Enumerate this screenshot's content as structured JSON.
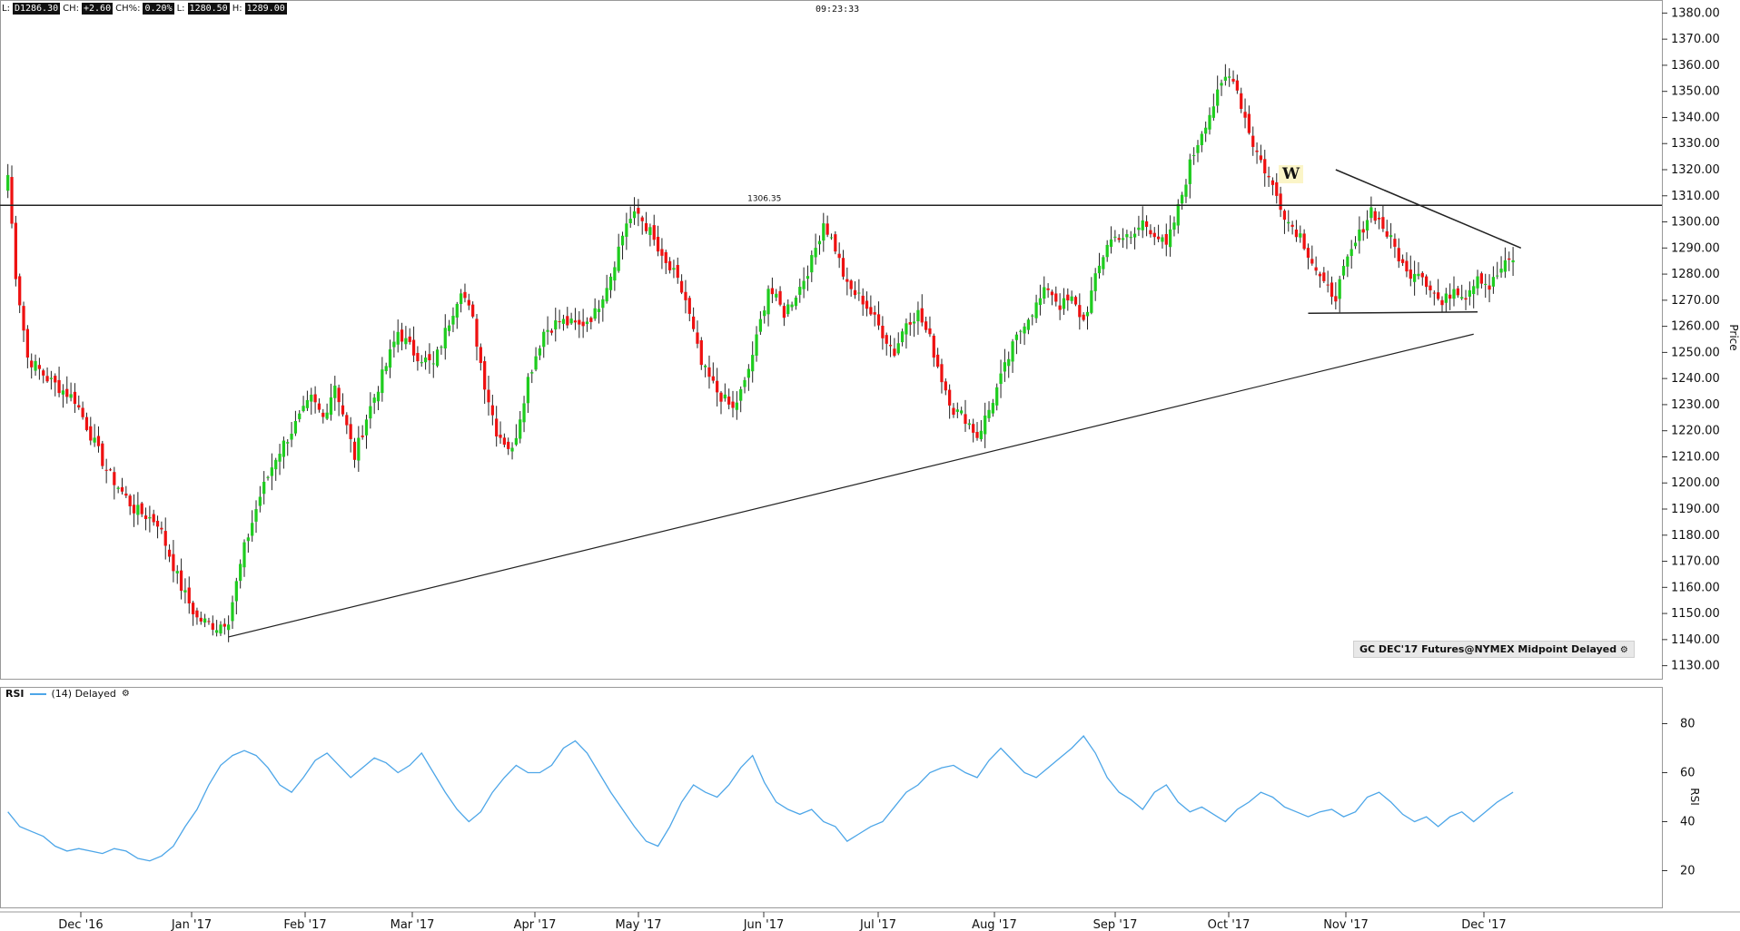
{
  "header": {
    "fields": [
      {
        "label": "L:",
        "value": "D1286.30"
      },
      {
        "label": "CH:",
        "value": "+2.60"
      },
      {
        "label": "CH%:",
        "value": "0.20%"
      },
      {
        "label": "L:",
        "value": "1280.50"
      },
      {
        "label": "H:",
        "value": "1289.00"
      }
    ],
    "clock": "09:23:33"
  },
  "symbol_label": "GC DEC'17 Futures@NYMEX Midpoint Delayed",
  "rsi_legend": {
    "name": "RSI",
    "params": "(14) Delayed"
  },
  "pattern_label": "W",
  "level_label": "1306.35",
  "chart_data": [
    {
      "type": "candlestick",
      "ylabel": "Price",
      "ylim": [
        1125,
        1385
      ],
      "y_ticks": [
        1130,
        1140,
        1150,
        1160,
        1170,
        1180,
        1190,
        1200,
        1210,
        1220,
        1230,
        1240,
        1250,
        1260,
        1270,
        1280,
        1290,
        1300,
        1310,
        1320,
        1330,
        1340,
        1350,
        1360,
        1370,
        1380
      ],
      "y_tick_labels": [
        "1130.00",
        "1140.00",
        "1150.00",
        "1160.00",
        "1170.00",
        "1180.00",
        "1190.00",
        "1200.00",
        "1210.00",
        "1220.00",
        "1230.00",
        "1240.00",
        "1250.00",
        "1260.00",
        "1270.00",
        "1280.00",
        "1290.00",
        "1300.00",
        "1310.00",
        "1320.00",
        "1330.00",
        "1340.00",
        "1350.00",
        "1360.00",
        "1370.00",
        "1380.00"
      ],
      "x_ticks": [
        "Dec '16",
        "Jan '17",
        "Feb '17",
        "Mar '17",
        "Apr '17",
        "May '17",
        "Jun '17",
        "Jul '17",
        "Aug '17",
        "Sep '17",
        "Oct '17",
        "Nov '17",
        "Dec '17"
      ],
      "colors": {
        "up": "#1fcc1f",
        "down": "#ee1111"
      },
      "close_path": [
        [
          0,
          1318
        ],
        [
          2,
          1280
        ],
        [
          5,
          1248
        ],
        [
          10,
          1240
        ],
        [
          17,
          1232
        ],
        [
          25,
          1205
        ],
        [
          32,
          1190
        ],
        [
          38,
          1185
        ],
        [
          44,
          1160
        ],
        [
          48,
          1148
        ],
        [
          53,
          1145
        ],
        [
          56,
          1148
        ],
        [
          60,
          1175
        ],
        [
          64,
          1195
        ],
        [
          68,
          1210
        ],
        [
          72,
          1220
        ],
        [
          77,
          1232
        ],
        [
          80,
          1225
        ],
        [
          83,
          1238
        ],
        [
          88,
          1210
        ],
        [
          91,
          1225
        ],
        [
          96,
          1245
        ],
        [
          99,
          1258
        ],
        [
          103,
          1250
        ],
        [
          108,
          1245
        ],
        [
          112,
          1262
        ],
        [
          115,
          1275
        ],
        [
          118,
          1262
        ],
        [
          121,
          1238
        ],
        [
          124,
          1220
        ],
        [
          128,
          1212
        ],
        [
          132,
          1240
        ],
        [
          136,
          1258
        ],
        [
          140,
          1262
        ],
        [
          145,
          1260
        ],
        [
          149,
          1265
        ],
        [
          153,
          1280
        ],
        [
          157,
          1300
        ],
        [
          160,
          1303
        ],
        [
          163,
          1296
        ],
        [
          166,
          1285
        ],
        [
          169,
          1280
        ],
        [
          172,
          1270
        ],
        [
          176,
          1245
        ],
        [
          180,
          1235
        ],
        [
          184,
          1228
        ],
        [
          187,
          1238
        ],
        [
          190,
          1255
        ],
        [
          193,
          1275
        ],
        [
          197,
          1265
        ],
        [
          201,
          1275
        ],
        [
          204,
          1285
        ],
        [
          207,
          1300
        ],
        [
          210,
          1290
        ],
        [
          213,
          1275
        ],
        [
          217,
          1270
        ],
        [
          221,
          1260
        ],
        [
          225,
          1250
        ],
        [
          228,
          1262
        ],
        [
          231,
          1265
        ],
        [
          234,
          1255
        ],
        [
          237,
          1240
        ],
        [
          240,
          1228
        ],
        [
          243,
          1225
        ],
        [
          246,
          1218
        ],
        [
          249,
          1228
        ],
        [
          252,
          1240
        ],
        [
          255,
          1252
        ],
        [
          258,
          1262
        ],
        [
          261,
          1268
        ],
        [
          264,
          1275
        ],
        [
          267,
          1268
        ],
        [
          270,
          1270
        ],
        [
          273,
          1262
        ],
        [
          276,
          1278
        ],
        [
          279,
          1292
        ],
        [
          282,
          1295
        ],
        [
          285,
          1293
        ],
        [
          288,
          1300
        ],
        [
          291,
          1296
        ],
        [
          294,
          1290
        ],
        [
          297,
          1305
        ],
        [
          300,
          1322
        ],
        [
          303,
          1335
        ],
        [
          306,
          1345
        ],
        [
          309,
          1355
        ],
        [
          311,
          1356
        ],
        [
          313,
          1345
        ],
        [
          316,
          1330
        ],
        [
          319,
          1320
        ],
        [
          322,
          1310
        ],
        [
          325,
          1300
        ],
        [
          328,
          1295
        ],
        [
          331,
          1285
        ],
        [
          334,
          1275
        ],
        [
          337,
          1272
        ],
        [
          340,
          1285
        ],
        [
          343,
          1295
        ],
        [
          346,
          1305
        ],
        [
          349,
          1298
        ],
        [
          352,
          1290
        ],
        [
          355,
          1280
        ],
        [
          358,
          1282
        ],
        [
          361,
          1275
        ],
        [
          364,
          1268
        ],
        [
          367,
          1275
        ],
        [
          370,
          1272
        ],
        [
          373,
          1280
        ],
        [
          376,
          1275
        ],
        [
          379,
          1282
        ],
        [
          382,
          1286
        ]
      ]
    },
    {
      "type": "line",
      "ylabel": "RSI",
      "ylim": [
        5,
        95
      ],
      "y_ticks": [
        20,
        40,
        60,
        80
      ],
      "color": "#4da6e8",
      "x": [
        0,
        3,
        6,
        9,
        12,
        15,
        18,
        21,
        24,
        27,
        30,
        33,
        36,
        39,
        42,
        45,
        48,
        51,
        54,
        57,
        60,
        63,
        66,
        69,
        72,
        75,
        78,
        81,
        84,
        87,
        90,
        93,
        96,
        99,
        102,
        105,
        108,
        111,
        114,
        117,
        120,
        123,
        126,
        129,
        132,
        135,
        138,
        141,
        144,
        147,
        150,
        153,
        156,
        159,
        162,
        165,
        168,
        171,
        174,
        177,
        180,
        183,
        186,
        189,
        192,
        195,
        198,
        201,
        204,
        207,
        210,
        213,
        216,
        219,
        222,
        225,
        228,
        231,
        234,
        237,
        240,
        243,
        246,
        249,
        252,
        255,
        258,
        261,
        264,
        267,
        270,
        273,
        276,
        279,
        282,
        285,
        288,
        291,
        294,
        297,
        300,
        303,
        306,
        309,
        312,
        315,
        318,
        321,
        324,
        327,
        330,
        333,
        336,
        339,
        342,
        345,
        348,
        351,
        354,
        357,
        360,
        363,
        366,
        369,
        372,
        375,
        378,
        382
      ],
      "values": [
        44,
        38,
        36,
        34,
        30,
        28,
        29,
        28,
        27,
        29,
        28,
        25,
        24,
        26,
        30,
        38,
        45,
        55,
        63,
        67,
        69,
        67,
        62,
        55,
        52,
        58,
        65,
        68,
        63,
        58,
        62,
        66,
        64,
        60,
        63,
        68,
        60,
        52,
        45,
        40,
        44,
        52,
        58,
        63,
        60,
        60,
        63,
        70,
        73,
        68,
        60,
        52,
        45,
        38,
        32,
        30,
        38,
        48,
        55,
        52,
        50,
        55,
        62,
        67,
        56,
        48,
        45,
        43,
        45,
        40,
        38,
        32,
        35,
        38,
        40,
        46,
        52,
        55,
        60,
        62,
        63,
        60,
        58,
        65,
        70,
        65,
        60,
        58,
        62,
        66,
        70,
        75,
        68,
        58,
        52,
        49,
        45,
        52,
        55,
        48,
        44,
        46,
        43,
        40,
        45,
        48,
        52,
        50,
        46,
        44,
        42,
        44,
        45,
        42,
        44,
        50,
        52,
        48,
        43,
        40,
        42,
        38,
        42,
        44,
        40,
        44,
        48,
        52
      ]
    }
  ]
}
